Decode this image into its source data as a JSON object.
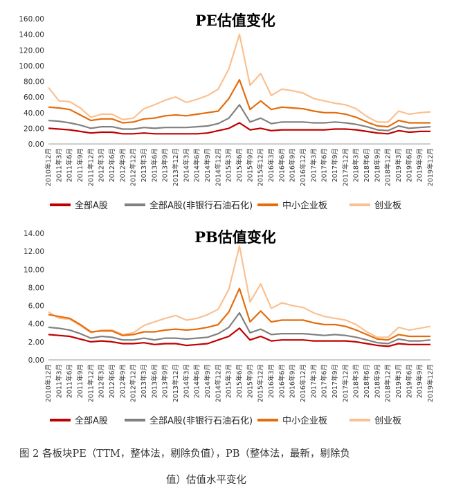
{
  "chart_data": [
    {
      "type": "line",
      "title": "PE估值变化",
      "ylim": [
        0,
        160
      ],
      "yticks": [
        "0.00",
        "20.00",
        "40.00",
        "60.00",
        "80.00",
        "100.00",
        "120.00",
        "140.00",
        "160.00"
      ],
      "x": [
        "2010年12月",
        "2011年3月",
        "2011年6月",
        "2011年9月",
        "2011年12月",
        "2012年3月",
        "2012年6月",
        "2012年9月",
        "2012年12月",
        "2013年3月",
        "2013年6月",
        "2013年9月",
        "2013年12月",
        "2014年3月",
        "2014年6月",
        "2014年9月",
        "2014年12月",
        "2015年3月",
        "2015年6月",
        "2015年9月",
        "2015年12月",
        "2016年3月",
        "2016年6月",
        "2016年9月",
        "2016年12月",
        "2017年3月",
        "2017年6月",
        "2017年9月",
        "2017年12月",
        "2018年3月",
        "2018年6月",
        "2018年9月",
        "2018年12月",
        "2019年3月",
        "2019年6月",
        "2019年9月",
        "2019年12月"
      ],
      "series": [
        {
          "name": "全部A股",
          "color": "#c00000",
          "values": [
            20,
            19,
            18,
            16,
            14,
            15,
            15,
            13,
            13,
            14,
            13,
            13,
            13,
            13,
            13,
            14,
            17,
            20,
            27,
            18,
            20,
            17,
            18,
            18,
            18,
            18,
            18,
            19,
            19,
            18,
            16,
            14,
            13,
            17,
            15,
            16,
            16
          ]
        },
        {
          "name": "全部A股(非银行石油石化)",
          "color": "#808080",
          "values": [
            30,
            29,
            27,
            24,
            20,
            22,
            22,
            19,
            19,
            21,
            20,
            21,
            21,
            21,
            22,
            23,
            26,
            33,
            50,
            28,
            33,
            26,
            28,
            28,
            28,
            27,
            27,
            28,
            27,
            25,
            22,
            18,
            17,
            23,
            20,
            21,
            22
          ]
        },
        {
          "name": "中小企业板",
          "color": "#e46c0a",
          "values": [
            47,
            46,
            44,
            37,
            30,
            32,
            32,
            27,
            28,
            32,
            33,
            36,
            37,
            36,
            38,
            40,
            42,
            58,
            82,
            44,
            55,
            44,
            47,
            46,
            45,
            42,
            40,
            40,
            38,
            34,
            28,
            23,
            22,
            30,
            27,
            27,
            27
          ]
        },
        {
          "name": "创业板",
          "color": "#fac090",
          "values": [
            72,
            55,
            54,
            46,
            34,
            38,
            38,
            31,
            33,
            45,
            50,
            56,
            60,
            53,
            57,
            62,
            70,
            96,
            140,
            75,
            90,
            62,
            70,
            68,
            65,
            58,
            55,
            52,
            50,
            45,
            35,
            28,
            28,
            42,
            38,
            40,
            41
          ]
        }
      ]
    },
    {
      "type": "line",
      "title": "PB估值变化",
      "ylim": [
        0,
        14
      ],
      "yticks": [
        "0.00",
        "2.00",
        "4.00",
        "6.00",
        "8.00",
        "10.00",
        "12.00",
        "14.00"
      ],
      "x": [
        "2010年12月",
        "2011年3月",
        "2011年6月",
        "2011年9月",
        "2011年12月",
        "2012年3月",
        "2012年6月",
        "2012年9月",
        "2012年12月",
        "2013年3月",
        "2013年6月",
        "2013年9月",
        "2013年12月",
        "2014年3月",
        "2014年6月",
        "2014年9月",
        "2014年12月",
        "2015年3月",
        "2015年6月",
        "2015年9月",
        "2015年12月",
        "2016年3月",
        "2016年6月",
        "2016年9月",
        "2016年12月",
        "2017年3月",
        "2017年6月",
        "2017年9月",
        "2017年12月",
        "2018年3月",
        "2018年6月",
        "2018年9月",
        "2018年12月",
        "2019年3月",
        "2019年6月",
        "2019年9月",
        "2019年12月"
      ],
      "series": [
        {
          "name": "全部A股",
          "color": "#c00000",
          "values": [
            2.8,
            2.7,
            2.6,
            2.3,
            2.0,
            2.1,
            2.0,
            1.8,
            1.8,
            1.9,
            1.7,
            1.8,
            1.8,
            1.6,
            1.7,
            1.8,
            2.2,
            2.6,
            3.5,
            2.2,
            2.6,
            2.1,
            2.2,
            2.2,
            2.2,
            2.1,
            2.1,
            2.1,
            2.1,
            2.0,
            1.8,
            1.6,
            1.5,
            1.8,
            1.7,
            1.7,
            1.7
          ]
        },
        {
          "name": "全部A股(非银行石油石化)",
          "color": "#808080",
          "values": [
            3.6,
            3.5,
            3.3,
            2.9,
            2.4,
            2.6,
            2.5,
            2.2,
            2.2,
            2.4,
            2.2,
            2.4,
            2.4,
            2.3,
            2.4,
            2.5,
            2.9,
            3.6,
            5.2,
            3.0,
            3.4,
            2.8,
            2.9,
            2.9,
            2.9,
            2.8,
            2.7,
            2.8,
            2.7,
            2.5,
            2.2,
            1.9,
            1.8,
            2.3,
            2.1,
            2.1,
            2.2
          ]
        },
        {
          "name": "中小企业板",
          "color": "#e46c0a",
          "values": [
            5.0,
            4.8,
            4.6,
            3.9,
            3.1,
            3.2,
            3.2,
            2.7,
            2.8,
            3.1,
            3.1,
            3.3,
            3.4,
            3.3,
            3.4,
            3.6,
            3.9,
            5.3,
            7.9,
            4.2,
            5.4,
            4.2,
            4.4,
            4.4,
            4.4,
            4.1,
            3.9,
            3.9,
            3.7,
            3.3,
            2.8,
            2.3,
            2.2,
            2.8,
            2.6,
            2.6,
            2.6
          ]
        },
        {
          "name": "创业板",
          "color": "#fac090",
          "values": [
            5.3,
            4.6,
            4.5,
            3.8,
            3.0,
            3.3,
            3.3,
            2.8,
            3.0,
            3.8,
            4.2,
            4.6,
            4.9,
            4.4,
            4.6,
            5.0,
            5.6,
            7.8,
            12.6,
            6.4,
            8.4,
            5.7,
            6.3,
            6.0,
            5.8,
            5.2,
            4.8,
            4.6,
            4.4,
            3.9,
            3.1,
            2.5,
            2.5,
            3.6,
            3.3,
            3.5,
            3.7
          ]
        }
      ]
    }
  ],
  "caption": {
    "line1": "图 2 各板块PE（TTM，整体法，剔除负值），PB（整体法，最新，剔除负",
    "line2": "值）估值水平变化"
  }
}
